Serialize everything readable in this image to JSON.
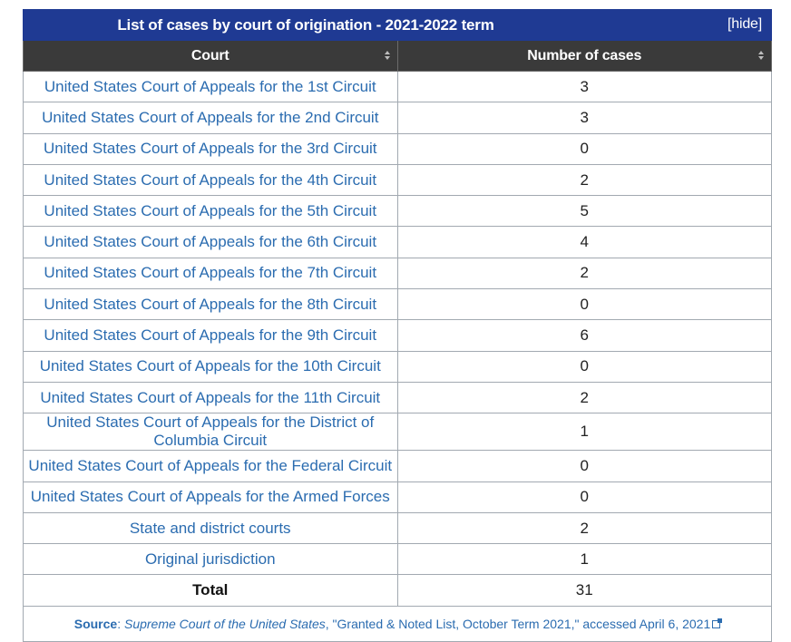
{
  "table": {
    "title": "List of cases by court of origination - 2021-2022 term",
    "hide_label": "[hide]",
    "headers": {
      "court": "Court",
      "cases": "Number of cases"
    },
    "rows": [
      {
        "court": "United States Court of Appeals for the 1st Circuit",
        "cases": "3"
      },
      {
        "court": "United States Court of Appeals for the 2nd Circuit",
        "cases": "3"
      },
      {
        "court": "United States Court of Appeals for the 3rd Circuit",
        "cases": "0"
      },
      {
        "court": "United States Court of Appeals for the 4th Circuit",
        "cases": "2"
      },
      {
        "court": "United States Court of Appeals for the 5th Circuit",
        "cases": "5"
      },
      {
        "court": "United States Court of Appeals for the 6th Circuit",
        "cases": "4"
      },
      {
        "court": "United States Court of Appeals for the 7th Circuit",
        "cases": "2"
      },
      {
        "court": "United States Court of Appeals for the 8th Circuit",
        "cases": "0"
      },
      {
        "court": "United States Court of Appeals for the 9th Circuit",
        "cases": "6"
      },
      {
        "court": "United States Court of Appeals for the 10th Circuit",
        "cases": "0"
      },
      {
        "court": "United States Court of Appeals for the 11th Circuit",
        "cases": "2"
      },
      {
        "court": "United States Court of Appeals for the District of Columbia Circuit",
        "cases": "1"
      },
      {
        "court": "United States Court of Appeals for the Federal Circuit",
        "cases": "0"
      },
      {
        "court": "United States Court of Appeals for the Armed Forces",
        "cases": "0"
      },
      {
        "court": "State and district courts",
        "cases": "2"
      },
      {
        "court": "Original jurisdiction",
        "cases": "1"
      }
    ],
    "total": {
      "label": "Total",
      "value": "31"
    },
    "source": {
      "label": "Source",
      "publisher": "Supreme Court of the United States",
      "rest": ", \"Granted & Noted List, October Term 2021,\" accessed April 6, 2021"
    }
  },
  "colors": {
    "title_bg": "#1f3a93",
    "header_bg": "#3a3a3a",
    "link": "#2b6cb0"
  },
  "icons": {
    "sort": "sort-icon",
    "external": "external-link-icon"
  }
}
